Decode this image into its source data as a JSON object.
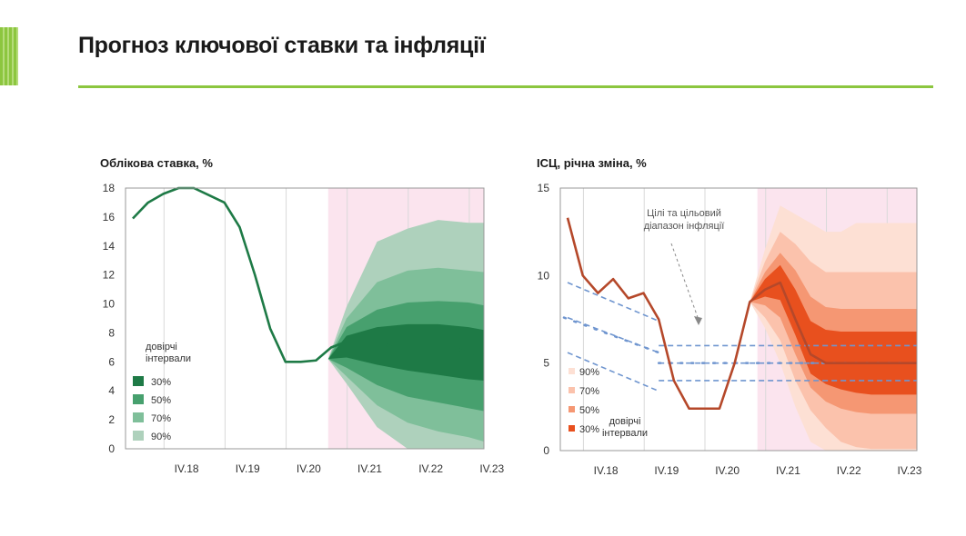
{
  "page": {
    "title": "Прогноз ключової ставки та інфляції",
    "accent_color": "#8cc63f"
  },
  "chart_data": [
    {
      "type": "line",
      "title": "Облікова ставка, %",
      "ylim": [
        0,
        18
      ],
      "yticks": [
        0,
        2,
        4,
        6,
        8,
        10,
        12,
        14,
        16,
        18
      ],
      "xlim": [
        0,
        23
      ],
      "xticks": [
        {
          "x": 4,
          "label": "IV.18"
        },
        {
          "x": 8,
          "label": "IV.19"
        },
        {
          "x": 12,
          "label": "IV.20"
        },
        {
          "x": 16,
          "label": "IV.21"
        },
        {
          "x": 20,
          "label": "IV.22"
        },
        {
          "x": 24,
          "label": "IV.23"
        }
      ],
      "grid": true,
      "forecast_start_x": 12.8,
      "forecast_shade_color": "#fbe4ee",
      "series": [
        {
          "values": [
            [
              0,
              15.9
            ],
            [
              1,
              17
            ],
            [
              2,
              17.6
            ],
            [
              3,
              18
            ],
            [
              4,
              18
            ],
            [
              5,
              17.5
            ],
            [
              6,
              17
            ],
            [
              7,
              15.3
            ],
            [
              8,
              12
            ],
            [
              9,
              8.3
            ],
            [
              10,
              6
            ],
            [
              11,
              6
            ],
            [
              12,
              6.1
            ],
            [
              13,
              7
            ],
            [
              14,
              7.4
            ],
            [
              15,
              7.5
            ],
            [
              16,
              7.5
            ],
            [
              17,
              7
            ],
            [
              18,
              7
            ],
            [
              19,
              7
            ],
            [
              20,
              7
            ],
            [
              21,
              7
            ],
            [
              22,
              6.6
            ],
            [
              23,
              6.5
            ]
          ],
          "color": "#1e7a46"
        }
      ],
      "fan_x": [
        12.8,
        14,
        16,
        18,
        20,
        22,
        23
      ],
      "fan_bands": [
        {
          "level": "90%",
          "color": "#aed1bc",
          "upper": [
            6.2,
            9.8,
            14.3,
            15.2,
            15.8,
            15.6,
            15.6
          ],
          "lower": [
            6.2,
            4.5,
            1.5,
            -1,
            -1,
            -1,
            -1
          ]
        },
        {
          "level": "70%",
          "color": "#7fbf9a",
          "upper": [
            6.2,
            9,
            11.5,
            12.3,
            12.5,
            12.3,
            12.2
          ],
          "lower": [
            6.2,
            5,
            3,
            1.8,
            1.2,
            0.8,
            0.5
          ]
        },
        {
          "level": "50%",
          "color": "#47a06e",
          "upper": [
            6.2,
            8.4,
            9.6,
            10.1,
            10.2,
            10.1,
            9.9
          ],
          "lower": [
            6.2,
            5.6,
            4.4,
            3.6,
            3.2,
            2.8,
            2.6
          ]
        },
        {
          "level": "30%",
          "color": "#1e7a46",
          "upper": [
            6.2,
            7.8,
            8.4,
            8.6,
            8.6,
            8.4,
            8.2
          ],
          "lower": [
            6.2,
            6.3,
            5.8,
            5.4,
            5.1,
            4.8,
            4.7
          ]
        }
      ],
      "legend": {
        "title": "довірчі інтервали",
        "placement": "bottom-left",
        "items": [
          "30%",
          "50%",
          "70%",
          "90%"
        ]
      }
    },
    {
      "type": "line",
      "title": "ІСЦ, річна зміна, %",
      "ylim": [
        0,
        15
      ],
      "yticks": [
        0,
        5,
        10,
        15
      ],
      "xlim": [
        0,
        23
      ],
      "xticks": [
        {
          "x": 3,
          "label": "IV.18"
        },
        {
          "x": 7,
          "label": "IV.19"
        },
        {
          "x": 11,
          "label": "IV.20"
        },
        {
          "x": 15,
          "label": "IV.21"
        },
        {
          "x": 19,
          "label": "IV.22"
        },
        {
          "x": 23,
          "label": "IV.23"
        }
      ],
      "grid": true,
      "forecast_start_x": 12.5,
      "forecast_shade_color": "#fbe4ee",
      "series": [
        {
          "values": [
            [
              0,
              13.3
            ],
            [
              1,
              10
            ],
            [
              2,
              9
            ],
            [
              3,
              9.8
            ],
            [
              4,
              8.7
            ],
            [
              5,
              9
            ],
            [
              6,
              7.5
            ],
            [
              7,
              4
            ],
            [
              8,
              2.4
            ],
            [
              9,
              2.4
            ],
            [
              10,
              2.4
            ],
            [
              11,
              5
            ],
            [
              12,
              8.5
            ],
            [
              13,
              9.2
            ],
            [
              14,
              9.6
            ],
            [
              15,
              7.5
            ],
            [
              16,
              5.5
            ],
            [
              17,
              5
            ],
            [
              18,
              5
            ],
            [
              19,
              5
            ],
            [
              20,
              5
            ],
            [
              21,
              5
            ],
            [
              22,
              5
            ],
            [
              23,
              5
            ]
          ],
          "color": "#b5482a"
        }
      ],
      "target_lines": [
        {
          "values": [
            [
              0,
              9.6
            ],
            [
              6,
              7.4
            ]
          ]
        },
        {
          "values": [
            [
              0,
              7.6
            ],
            [
              6,
              5.6
            ]
          ]
        },
        {
          "values": [
            [
              0,
              5.6
            ],
            [
              6,
              3.4
            ]
          ]
        },
        {
          "values": [
            [
              6,
              6
            ],
            [
              23,
              6
            ]
          ]
        },
        {
          "values": [
            [
              6,
              5
            ],
            [
              23,
              5
            ]
          ]
        },
        {
          "values": [
            [
              6,
              4
            ],
            [
              23,
              4
            ]
          ]
        }
      ],
      "target_color": "#6f95cf",
      "annotation": {
        "text": [
          "Цілі та цільовий",
          "діапазон інфляції"
        ]
      },
      "fan_x": [
        12,
        13,
        14,
        15,
        16,
        17,
        18,
        19,
        20,
        21,
        22,
        23
      ],
      "fan_bands": [
        {
          "level": "90%",
          "color": "#fde0d4",
          "upper": [
            8.5,
            11.5,
            14,
            13.5,
            13,
            12.5,
            12.5,
            13,
            13,
            13,
            13,
            13
          ],
          "lower": [
            8.5,
            7,
            5,
            2.5,
            0.5,
            -1,
            -1,
            -1,
            -1,
            -1,
            -1,
            -1
          ]
        },
        {
          "level": "70%",
          "color": "#fbc2ac",
          "upper": [
            8.5,
            10.8,
            12.5,
            11.8,
            10.8,
            10.2,
            10.2,
            10.2,
            10.2,
            10.2,
            10.2,
            10.2
          ],
          "lower": [
            8.5,
            7.6,
            6.3,
            4,
            2.3,
            1.3,
            0.5,
            0.2,
            0.1,
            0.1,
            0.1,
            0.1
          ]
        },
        {
          "level": "50%",
          "color": "#f59773",
          "upper": [
            8.5,
            10.2,
            11.3,
            10.3,
            8.8,
            8.2,
            8.1,
            8.1,
            8.1,
            8.1,
            8.1,
            8.1
          ],
          "lower": [
            8.5,
            8.3,
            7.6,
            5.5,
            3.6,
            2.8,
            2.4,
            2.2,
            2.1,
            2.1,
            2.1,
            2.1
          ]
        },
        {
          "level": "30%",
          "color": "#e8501e",
          "upper": [
            8.5,
            9.8,
            10.6,
            9.2,
            7.4,
            6.9,
            6.8,
            6.8,
            6.8,
            6.8,
            6.8,
            6.8
          ],
          "lower": [
            8.5,
            8.8,
            8.6,
            6.6,
            4.4,
            3.8,
            3.5,
            3.3,
            3.2,
            3.2,
            3.2,
            3.2
          ]
        }
      ],
      "legend": {
        "title": "довірчі інтервали",
        "placement": "bottom-left",
        "items": [
          "90%",
          "70%",
          "50%",
          "30%"
        ]
      }
    }
  ]
}
